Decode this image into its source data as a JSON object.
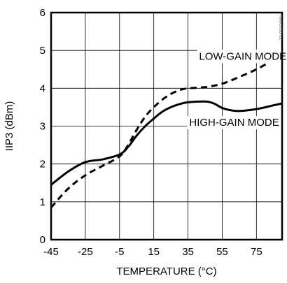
{
  "chart_data": {
    "type": "line",
    "xlabel": "TEMPERATURE (°C)",
    "ylabel": "IIP3 (dBm)",
    "xlim": [
      -45,
      90
    ],
    "ylim": [
      0,
      6
    ],
    "xticks": [
      "-45",
      "-25",
      "-5",
      "15",
      "35",
      "55",
      "75"
    ],
    "xtick_values": [
      -45,
      -25,
      -5,
      15,
      35,
      55,
      75
    ],
    "yticks": [
      "0",
      "1",
      "2",
      "3",
      "4",
      "5",
      "6"
    ],
    "grid": true,
    "series": [
      {
        "name": "LOW-GAIN MODE",
        "style": "dashed",
        "color": "#000000",
        "x": [
          -45,
          -35,
          -25,
          -15,
          -5,
          0,
          5,
          10,
          15,
          20,
          25,
          30,
          35,
          45,
          55,
          65,
          75,
          85,
          90
        ],
        "y": [
          0.85,
          1.35,
          1.7,
          1.95,
          2.2,
          2.5,
          2.9,
          3.25,
          3.5,
          3.7,
          3.85,
          3.95,
          4.0,
          4.03,
          4.12,
          4.3,
          4.5,
          4.75,
          4.85
        ]
      },
      {
        "name": "HIGH-GAIN MODE",
        "style": "solid",
        "color": "#000000",
        "x": [
          -45,
          -35,
          -25,
          -15,
          -5,
          0,
          5,
          10,
          15,
          20,
          25,
          30,
          35,
          45,
          50,
          55,
          60,
          65,
          75,
          85,
          90
        ],
        "y": [
          1.45,
          1.8,
          2.05,
          2.12,
          2.25,
          2.45,
          2.75,
          3.0,
          3.2,
          3.38,
          3.5,
          3.58,
          3.63,
          3.65,
          3.6,
          3.48,
          3.42,
          3.4,
          3.45,
          3.55,
          3.6
        ]
      }
    ],
    "annotations": [
      {
        "text": "LOW-GAIN MODE",
        "x": 67,
        "y": 4.85
      },
      {
        "text": "HIGH-GAIN MODE",
        "x": 62,
        "y": 3.1
      }
    ],
    "watermark": "MAX2055 toc"
  }
}
